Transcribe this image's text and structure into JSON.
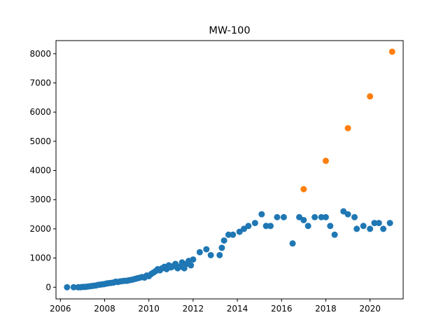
{
  "chart_data": {
    "type": "scatter",
    "title": "MW-100",
    "xlabel": "",
    "ylabel": "",
    "xlim": [
      2005.8,
      2021.5
    ],
    "ylim": [
      -400,
      8450
    ],
    "xticks": [
      2006,
      2008,
      2010,
      2012,
      2014,
      2016,
      2018,
      2020
    ],
    "yticks": [
      0,
      1000,
      2000,
      3000,
      4000,
      5000,
      6000,
      7000,
      8000
    ],
    "grid": false,
    "colors": {
      "series_1": "#1f77b4",
      "series_2": "#ff7f0e"
    },
    "series": [
      {
        "points": [
          [
            2006.3,
            0
          ],
          [
            2006.6,
            0
          ],
          [
            2006.8,
            0
          ],
          [
            2006.9,
            0
          ],
          [
            2007.0,
            10
          ],
          [
            2007.1,
            10
          ],
          [
            2007.2,
            20
          ],
          [
            2007.3,
            30
          ],
          [
            2007.4,
            40
          ],
          [
            2007.5,
            50
          ],
          [
            2007.6,
            60
          ],
          [
            2007.7,
            80
          ],
          [
            2007.8,
            90
          ],
          [
            2007.9,
            100
          ],
          [
            2008.0,
            110
          ],
          [
            2008.1,
            130
          ],
          [
            2008.2,
            140
          ],
          [
            2008.3,
            150
          ],
          [
            2008.4,
            160
          ],
          [
            2008.5,
            190
          ],
          [
            2008.6,
            180
          ],
          [
            2008.7,
            200
          ],
          [
            2008.8,
            210
          ],
          [
            2008.9,
            220
          ],
          [
            2009.0,
            220
          ],
          [
            2009.1,
            240
          ],
          [
            2009.2,
            250
          ],
          [
            2009.3,
            270
          ],
          [
            2009.4,
            290
          ],
          [
            2009.5,
            310
          ],
          [
            2009.6,
            330
          ],
          [
            2009.7,
            350
          ],
          [
            2009.8,
            330
          ],
          [
            2009.9,
            400
          ],
          [
            2010.0,
            380
          ],
          [
            2010.1,
            450
          ],
          [
            2010.2,
            500
          ],
          [
            2010.3,
            550
          ],
          [
            2010.4,
            620
          ],
          [
            2010.5,
            580
          ],
          [
            2010.6,
            650
          ],
          [
            2010.7,
            700
          ],
          [
            2010.8,
            620
          ],
          [
            2010.9,
            750
          ],
          [
            2011.0,
            680
          ],
          [
            2011.1,
            720
          ],
          [
            2011.2,
            800
          ],
          [
            2011.3,
            650
          ],
          [
            2011.4,
            700
          ],
          [
            2011.5,
            850
          ],
          [
            2011.6,
            650
          ],
          [
            2011.7,
            800
          ],
          [
            2011.8,
            900
          ],
          [
            2011.9,
            750
          ],
          [
            2012.0,
            950
          ],
          [
            2012.3,
            1200
          ],
          [
            2012.6,
            1300
          ],
          [
            2012.8,
            1100
          ],
          [
            2013.2,
            1100
          ],
          [
            2013.3,
            1350
          ],
          [
            2013.4,
            1600
          ],
          [
            2013.6,
            1800
          ],
          [
            2013.8,
            1800
          ],
          [
            2014.1,
            1900
          ],
          [
            2014.3,
            2000
          ],
          [
            2014.5,
            2100
          ],
          [
            2014.8,
            2200
          ],
          [
            2015.1,
            2500
          ],
          [
            2015.3,
            2100
          ],
          [
            2015.5,
            2100
          ],
          [
            2015.8,
            2400
          ],
          [
            2016.1,
            2400
          ],
          [
            2016.5,
            1500
          ],
          [
            2016.8,
            2400
          ],
          [
            2017.0,
            2300
          ],
          [
            2017.2,
            2100
          ],
          [
            2017.5,
            2400
          ],
          [
            2017.8,
            2400
          ],
          [
            2018.0,
            2400
          ],
          [
            2018.2,
            2100
          ],
          [
            2018.4,
            1800
          ],
          [
            2018.8,
            2600
          ],
          [
            2019.0,
            2500
          ],
          [
            2019.3,
            2400
          ],
          [
            2019.4,
            2000
          ],
          [
            2019.7,
            2100
          ],
          [
            2020.0,
            2000
          ],
          [
            2020.2,
            2200
          ],
          [
            2020.4,
            2200
          ],
          [
            2020.6,
            2000
          ],
          [
            2020.9,
            2200
          ]
        ]
      },
      {
        "points": [
          [
            2017.0,
            3360
          ],
          [
            2018.0,
            4330
          ],
          [
            2019.0,
            5450
          ],
          [
            2020.0,
            6540
          ],
          [
            2021.0,
            8070
          ]
        ]
      }
    ]
  }
}
